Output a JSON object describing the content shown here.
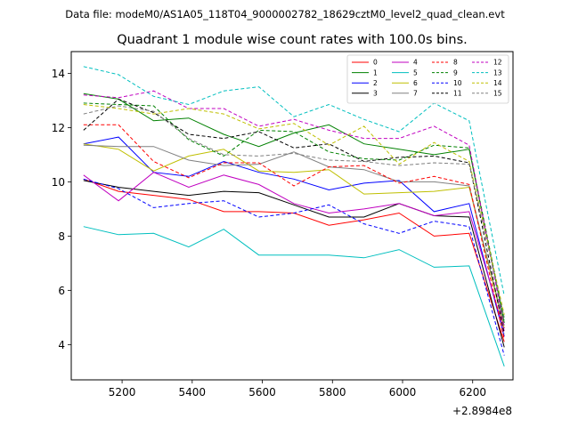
{
  "suptitle": "Data file: modeM0/AS1A05_118T04_9000002782_18629cztM0_level2_quad_clean.evt",
  "chart_data": {
    "type": "line",
    "title": "Quadrant 1 module wise count rates with 100.0s bins.",
    "xlabel": "",
    "ylabel": "",
    "x_offset_label": "+2.8984e8",
    "xlim": [
      5055,
      6315
    ],
    "ylim": [
      2.7,
      14.8
    ],
    "xticks": [
      5200,
      5400,
      5600,
      5800,
      6000,
      6200
    ],
    "yticks": [
      4,
      6,
      8,
      10,
      12,
      14
    ],
    "legend_position": "top-right",
    "legend_columns": 4,
    "x": [
      5090,
      5190,
      5290,
      5390,
      5490,
      5590,
      5690,
      5790,
      5890,
      5990,
      6090,
      6190,
      6290
    ],
    "series": [
      {
        "name": "0",
        "color": "#ff0000",
        "dash": "solid",
        "values": [
          10.1,
          9.65,
          9.5,
          9.35,
          8.9,
          8.9,
          8.85,
          8.4,
          8.6,
          8.85,
          8.0,
          8.1,
          4.1
        ]
      },
      {
        "name": "1",
        "color": "#008000",
        "dash": "solid",
        "values": [
          13.25,
          13.05,
          12.25,
          12.35,
          11.75,
          11.3,
          11.8,
          12.1,
          11.4,
          11.2,
          11.0,
          11.2,
          4.8
        ]
      },
      {
        "name": "2",
        "color": "#0000ff",
        "dash": "solid",
        "values": [
          11.4,
          11.65,
          10.35,
          10.2,
          10.75,
          10.35,
          10.1,
          9.7,
          9.95,
          10.05,
          8.9,
          9.2,
          4.3
        ]
      },
      {
        "name": "3",
        "color": "#000000",
        "dash": "solid",
        "values": [
          10.05,
          9.8,
          9.65,
          9.5,
          9.65,
          9.6,
          9.15,
          8.7,
          8.7,
          9.2,
          8.75,
          8.7,
          3.9
        ]
      },
      {
        "name": "4",
        "color": "#c000c0",
        "dash": "solid",
        "values": [
          10.25,
          9.3,
          10.35,
          9.8,
          10.25,
          9.9,
          9.2,
          8.85,
          9.0,
          9.2,
          8.75,
          8.9,
          4.5
        ]
      },
      {
        "name": "5",
        "color": "#00bfbf",
        "dash": "solid",
        "values": [
          8.35,
          8.05,
          8.1,
          7.6,
          8.25,
          7.3,
          7.3,
          7.3,
          7.2,
          7.5,
          6.85,
          6.9,
          3.2
        ]
      },
      {
        "name": "6",
        "color": "#bfbf00",
        "dash": "solid",
        "values": [
          11.4,
          11.2,
          10.4,
          10.95,
          11.2,
          10.4,
          10.35,
          10.45,
          9.55,
          9.6,
          9.65,
          9.8,
          4.6
        ]
      },
      {
        "name": "7",
        "color": "#808080",
        "dash": "solid",
        "values": [
          11.35,
          11.3,
          11.3,
          10.8,
          10.6,
          10.65,
          11.1,
          10.55,
          10.45,
          10.0,
          10.0,
          9.85,
          4.7
        ]
      },
      {
        "name": "8",
        "color": "#ff0000",
        "dash": "dashed",
        "values": [
          12.1,
          12.1,
          10.75,
          10.15,
          10.7,
          10.7,
          9.85,
          10.55,
          10.6,
          9.95,
          10.2,
          9.9,
          4.2
        ]
      },
      {
        "name": "9",
        "color": "#008000",
        "dash": "dashed",
        "values": [
          12.9,
          12.85,
          12.8,
          11.55,
          10.95,
          11.9,
          11.85,
          11.1,
          10.85,
          10.8,
          11.35,
          11.25,
          4.9
        ]
      },
      {
        "name": "10",
        "color": "#0000ff",
        "dash": "dashed",
        "values": [
          10.1,
          9.75,
          9.05,
          9.2,
          9.3,
          8.7,
          8.85,
          9.15,
          8.45,
          8.1,
          8.55,
          8.35,
          3.6
        ]
      },
      {
        "name": "11",
        "color": "#000000",
        "dash": "dashed",
        "values": [
          11.9,
          13.05,
          12.55,
          11.75,
          11.6,
          11.85,
          11.25,
          11.4,
          10.75,
          10.9,
          10.95,
          10.7,
          4.4
        ]
      },
      {
        "name": "12",
        "color": "#c000c0",
        "dash": "dashed",
        "values": [
          13.2,
          13.1,
          13.35,
          12.7,
          12.7,
          12.05,
          12.3,
          11.9,
          11.6,
          11.6,
          12.05,
          11.35,
          4.6
        ]
      },
      {
        "name": "13",
        "color": "#00bfbf",
        "dash": "dashed",
        "values": [
          14.25,
          13.95,
          13.15,
          12.85,
          13.35,
          13.5,
          12.4,
          12.85,
          12.3,
          11.85,
          12.9,
          12.25,
          5.8
        ]
      },
      {
        "name": "14",
        "color": "#bfbf00",
        "dash": "dashed",
        "values": [
          12.85,
          12.7,
          12.5,
          12.7,
          12.5,
          11.95,
          12.15,
          11.35,
          12.05,
          10.65,
          11.45,
          10.75,
          5.1
        ]
      },
      {
        "name": "15",
        "color": "#808080",
        "dash": "dashed",
        "values": [
          12.5,
          12.8,
          12.6,
          11.6,
          11.0,
          10.95,
          11.05,
          10.8,
          10.75,
          10.6,
          10.7,
          10.65,
          5.0
        ]
      }
    ]
  }
}
